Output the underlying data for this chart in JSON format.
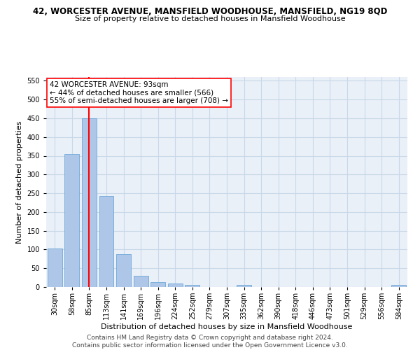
{
  "title": "42, WORCESTER AVENUE, MANSFIELD WOODHOUSE, MANSFIELD, NG19 8QD",
  "subtitle": "Size of property relative to detached houses in Mansfield Woodhouse",
  "xlabel": "Distribution of detached houses by size in Mansfield Woodhouse",
  "ylabel": "Number of detached properties",
  "bins": [
    "30sqm",
    "58sqm",
    "85sqm",
    "113sqm",
    "141sqm",
    "169sqm",
    "196sqm",
    "224sqm",
    "252sqm",
    "279sqm",
    "307sqm",
    "335sqm",
    "362sqm",
    "390sqm",
    "418sqm",
    "446sqm",
    "473sqm",
    "501sqm",
    "529sqm",
    "556sqm",
    "584sqm"
  ],
  "values": [
    103,
    355,
    450,
    243,
    87,
    30,
    13,
    9,
    6,
    0,
    0,
    5,
    0,
    0,
    0,
    0,
    0,
    0,
    0,
    0,
    5
  ],
  "bar_color": "#aec6e8",
  "bar_edge_color": "#5a9fd4",
  "grid_color": "#c8d8e8",
  "background_color": "#eaf0f8",
  "vline_x_index": 2.0,
  "vline_color": "red",
  "annotation_text": "42 WORCESTER AVENUE: 93sqm\n← 44% of detached houses are smaller (566)\n55% of semi-detached houses are larger (708) →",
  "annotation_box_color": "white",
  "annotation_box_edge": "red",
  "ylim": [
    0,
    560
  ],
  "yticks": [
    0,
    50,
    100,
    150,
    200,
    250,
    300,
    350,
    400,
    450,
    500,
    550
  ],
  "footer": "Contains HM Land Registry data © Crown copyright and database right 2024.\nContains public sector information licensed under the Open Government Licence v3.0.",
  "title_fontsize": 8.5,
  "subtitle_fontsize": 8,
  "xlabel_fontsize": 8,
  "ylabel_fontsize": 8,
  "tick_fontsize": 7,
  "footer_fontsize": 6.5,
  "annotation_fontsize": 7.5
}
